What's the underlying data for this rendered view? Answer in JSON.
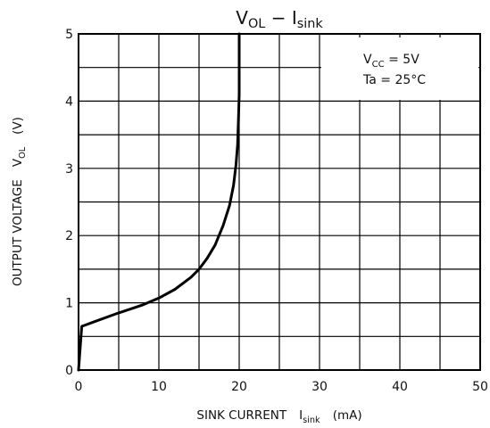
{
  "chart_data": {
    "type": "line",
    "title": {
      "main": "V",
      "main_sub": "OL",
      "sep": " − ",
      "second": "I",
      "second_sub": "sink"
    },
    "xlabel": {
      "text": "SINK CURRENT",
      "sym": "I",
      "sym_sub": "sink",
      "unit": "(mA)"
    },
    "ylabel": {
      "text": "OUTPUT VOLTAGE",
      "sym": "V",
      "sym_sub": "OL",
      "unit": "(V)"
    },
    "xlim": [
      0,
      50
    ],
    "ylim": [
      0,
      5
    ],
    "x_ticks": [
      "0",
      "10",
      "20",
      "30",
      "40",
      "50"
    ],
    "y_ticks": [
      "0",
      "1",
      "2",
      "3",
      "4",
      "5"
    ],
    "grid": true,
    "conditions": [
      {
        "sym": "V",
        "sub": "CC",
        "rest": " = 5V"
      },
      {
        "sym": "Ta = 25°C",
        "sub": "",
        "rest": ""
      }
    ],
    "series": [
      {
        "x": [
          0,
          0.4,
          2,
          5,
          8,
          10,
          12,
          14,
          15,
          16,
          17,
          18,
          18.8,
          19.3,
          19.6,
          19.8,
          19.9,
          20,
          20
        ],
        "y": [
          0,
          0.65,
          0.72,
          0.85,
          0.97,
          1.07,
          1.2,
          1.38,
          1.5,
          1.66,
          1.86,
          2.15,
          2.45,
          2.75,
          3.05,
          3.35,
          3.7,
          4.1,
          5
        ]
      }
    ]
  }
}
